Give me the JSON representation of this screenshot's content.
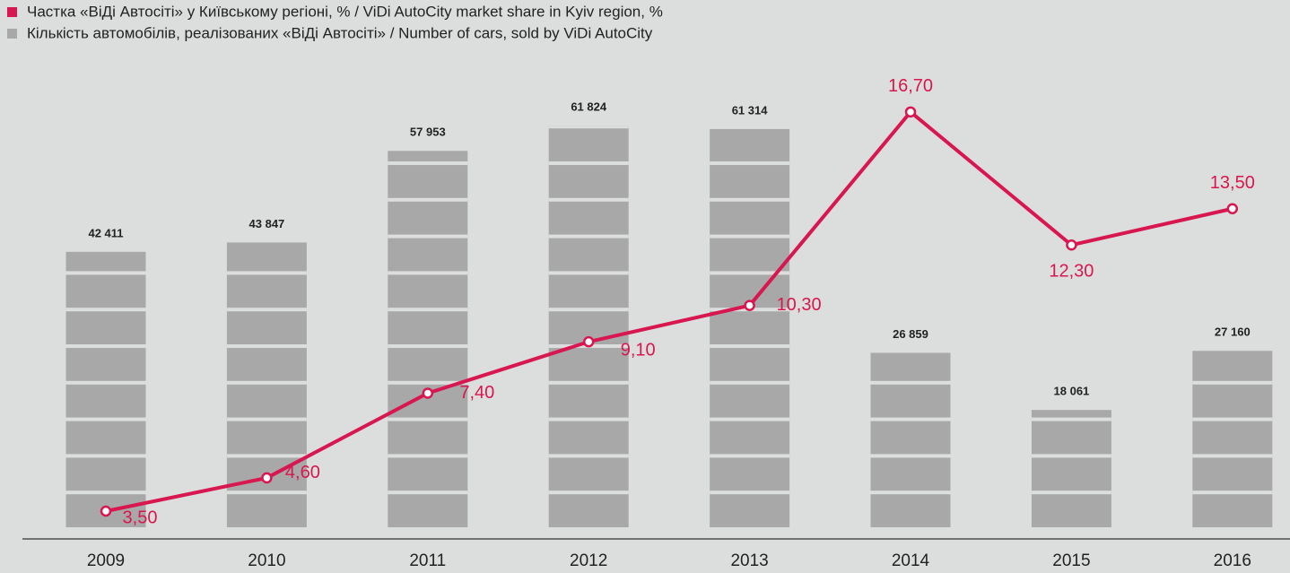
{
  "chart_data": {
    "type": "bar+line",
    "categories": [
      "2009",
      "2010",
      "2011",
      "2012",
      "2013",
      "2014",
      "2015",
      "2016"
    ],
    "series": [
      {
        "name": "Частка «ВіДі Автосіті» у Київському регіоні, % / ViDi AutoCity market share in Kyiv region, %",
        "type": "line",
        "axis": "y2",
        "color": "#d8164f",
        "values": [
          3.5,
          4.6,
          7.4,
          9.1,
          10.3,
          16.7,
          12.3,
          13.5
        ],
        "value_labels": [
          "3,50",
          "4,60",
          "7,40",
          "9,10",
          "10,30",
          "16,70",
          "12,30",
          "13,50"
        ]
      },
      {
        "name": "Кількість автомобілів, реалізованих «ВіДі Автосіті» / Number of cars, sold by ViDi AutoCity",
        "type": "bar",
        "color": "#a8a8a8",
        "values": [
          42411,
          43847,
          57953,
          61824,
          61314,
          26859,
          18061,
          27160
        ],
        "value_labels": [
          "42 411",
          "43 847",
          "57 953",
          "61 824",
          "61 314",
          "26 859",
          "18 061",
          "27 160"
        ]
      }
    ],
    "ylim": [
      0,
      70000
    ],
    "y2lim": [
      2,
      18
    ]
  }
}
